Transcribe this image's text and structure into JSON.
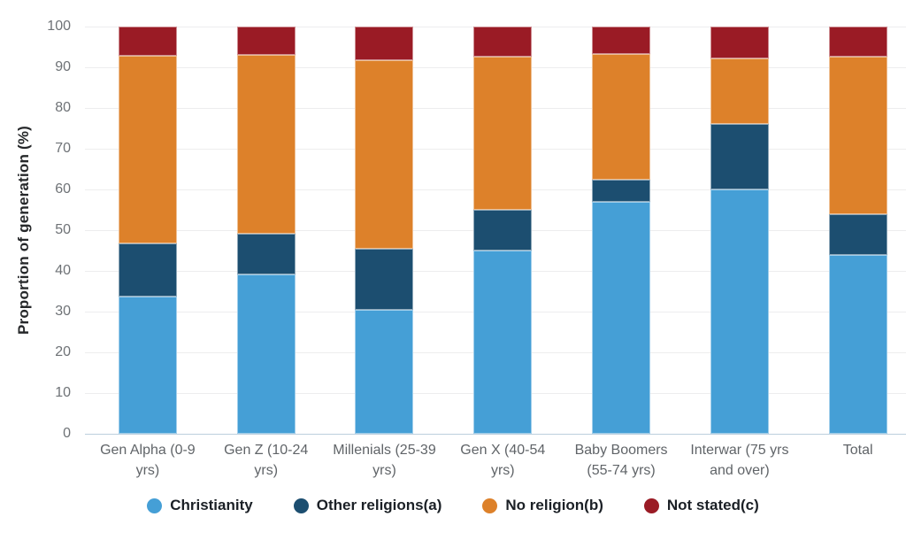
{
  "y_axis": {
    "title": "Proportion of generation (%)",
    "ticks": [
      0,
      10,
      20,
      30,
      40,
      50,
      60,
      70,
      80,
      90,
      100
    ]
  },
  "chart_data": {
    "type": "bar",
    "stacked": true,
    "title": "",
    "xlabel": "",
    "ylabel": "Proportion of generation (%)",
    "ylim": [
      0,
      100
    ],
    "yticks": [
      0,
      10,
      20,
      30,
      40,
      50,
      60,
      70,
      80,
      90,
      100
    ],
    "grid": true,
    "legend_position": "bottom",
    "categories": [
      "Gen Alpha (0-9 yrs)",
      "Gen Z (10-24 yrs)",
      "Millenials (25-39 yrs)",
      "Gen X (40-54 yrs)",
      "Baby Boomers (55-74 yrs)",
      "Interwar (75 yrs and over)",
      "Total"
    ],
    "series": [
      {
        "name": "Christianity",
        "color": "#459fd6",
        "values": [
          33.8,
          39.2,
          30.5,
          45.0,
          56.9,
          60.0,
          43.9
        ]
      },
      {
        "name": "Other religions(a)",
        "color": "#1c4e70",
        "values": [
          12.9,
          9.9,
          15.0,
          10.0,
          5.6,
          16.1,
          10.0
        ]
      },
      {
        "name": "No religion(b)",
        "color": "#dd812a",
        "values": [
          46.2,
          44.0,
          46.3,
          37.6,
          30.7,
          16.0,
          38.8
        ]
      },
      {
        "name": "Not stated(c)",
        "color": "#9a1b25",
        "values": [
          7.1,
          6.9,
          8.2,
          7.4,
          6.8,
          7.9,
          7.3
        ]
      }
    ]
  },
  "colors": {
    "gridline": "#ededee",
    "baseline": "#bccfdd",
    "tick_text": "#6e7276",
    "category_text": "#606468",
    "axis_title_text": "#26282a",
    "legend_text": "#1b2026"
  }
}
